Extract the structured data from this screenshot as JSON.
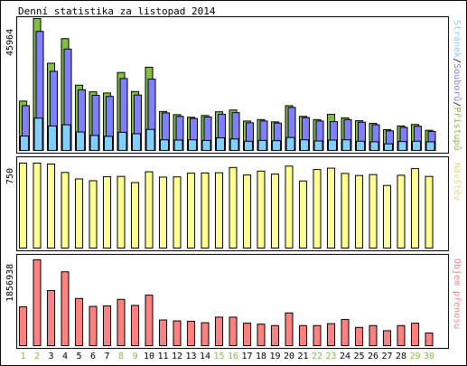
{
  "title": "Denní statistika za listopad 2014",
  "colors": {
    "background": "#ffffff",
    "border": "#000000",
    "hits": "#80c040",
    "files": "#8080ff",
    "pages": "#80d0ff",
    "visits": "#ffff90",
    "volume": "#ff8080",
    "weekday_label": "#000000",
    "weekend_label": "#80c040"
  },
  "chart_data": [
    {
      "type": "bar",
      "title": "Denní statistika za listopad 2014",
      "legend": [
        "Stránek",
        "Souborů",
        "Přístupů"
      ],
      "legend_placement": "right-vertical",
      "ymax_label": "45964",
      "ylim": [
        0,
        45964
      ],
      "grid": false,
      "categories": [
        "1",
        "2",
        "3",
        "4",
        "5",
        "6",
        "7",
        "8",
        "9",
        "10",
        "11",
        "12",
        "13",
        "14",
        "15",
        "16",
        "17",
        "18",
        "19",
        "20",
        "21",
        "22",
        "23",
        "24",
        "25",
        "26",
        "27",
        "28",
        "29",
        "30"
      ],
      "weekend_days": [
        "1",
        "2",
        "8",
        "9",
        "15",
        "16",
        "22",
        "23",
        "29",
        "30"
      ],
      "series": [
        {
          "name": "Přístupů",
          "color": "#80c040",
          "values": [
            17400,
            45964,
            30500,
            39000,
            22900,
            20600,
            20200,
            27300,
            20700,
            29100,
            13800,
            12700,
            11800,
            12400,
            13700,
            14300,
            10500,
            11000,
            10200,
            15800,
            12100,
            11000,
            12800,
            11600,
            10600,
            9700,
            7500,
            8800,
            9300,
            7300
          ]
        },
        {
          "name": "Souborů",
          "color": "#8080ff",
          "values": [
            15800,
            41500,
            27700,
            35400,
            21300,
            19400,
            19000,
            25200,
            19500,
            25000,
            13300,
            12100,
            11400,
            11900,
            12800,
            13400,
            9900,
            10500,
            9800,
            15200,
            11700,
            10500,
            10300,
            11000,
            10100,
            9200,
            7100,
            8300,
            8700,
            6900
          ]
        },
        {
          "name": "Stránek",
          "color": "#80d0ff",
          "values": [
            5300,
            11500,
            8800,
            9200,
            6700,
            5500,
            5200,
            6600,
            6100,
            7600,
            4000,
            3900,
            4000,
            3800,
            4700,
            4300,
            3500,
            3800,
            3700,
            4800,
            4000,
            3600,
            3900,
            4000,
            3500,
            3300,
            2600,
            3400,
            3500,
            3300
          ]
        }
      ]
    },
    {
      "type": "bar",
      "legend": [
        "Návštěv"
      ],
      "legend_placement": "right-vertical",
      "ymax_label": "750",
      "ylim": [
        0,
        750
      ],
      "grid": false,
      "categories": [
        "1",
        "2",
        "3",
        "4",
        "5",
        "6",
        "7",
        "8",
        "9",
        "10",
        "11",
        "12",
        "13",
        "14",
        "15",
        "16",
        "17",
        "18",
        "19",
        "20",
        "21",
        "22",
        "23",
        "24",
        "25",
        "26",
        "27",
        "28",
        "29",
        "30"
      ],
      "series": [
        {
          "name": "Návštěv",
          "color": "#ffff90",
          "values": [
            750,
            750,
            742,
            668,
            612,
            596,
            632,
            634,
            580,
            674,
            628,
            630,
            662,
            664,
            666,
            712,
            646,
            680,
            654,
            724,
            594,
            694,
            706,
            660,
            642,
            650,
            555,
            644,
            702,
            634
          ]
        }
      ]
    },
    {
      "type": "bar",
      "legend": [
        "Objem přenosu"
      ],
      "legend_placement": "right-vertical",
      "ymax_label": "1856938",
      "ylim": [
        0,
        1856938
      ],
      "grid": false,
      "categories": [
        "1",
        "2",
        "3",
        "4",
        "5",
        "6",
        "7",
        "8",
        "9",
        "10",
        "11",
        "12",
        "13",
        "14",
        "15",
        "16",
        "17",
        "18",
        "19",
        "20",
        "21",
        "22",
        "23",
        "24",
        "25",
        "26",
        "27",
        "28",
        "29",
        "30"
      ],
      "series": [
        {
          "name": "Objem přenosu",
          "color": "#ff8080",
          "values": [
            850000,
            1856938,
            1200000,
            1600000,
            1030000,
            860000,
            870000,
            1010000,
            880000,
            1100000,
            570000,
            550000,
            540000,
            510000,
            630000,
            630000,
            500000,
            480000,
            450000,
            720000,
            450000,
            450000,
            490000,
            580000,
            410000,
            450000,
            340000,
            450000,
            500000,
            290000
          ]
        }
      ]
    }
  ]
}
